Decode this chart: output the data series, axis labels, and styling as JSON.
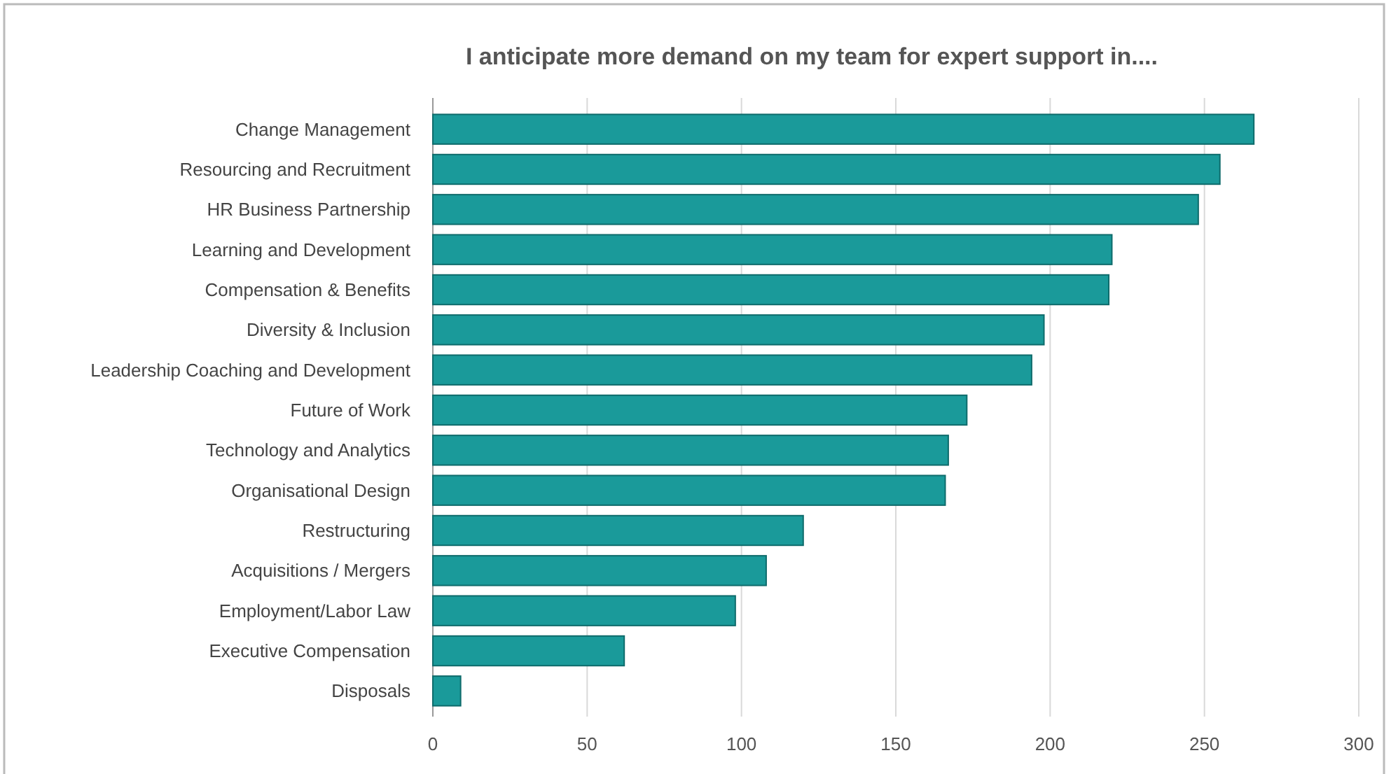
{
  "chart_data": {
    "type": "bar",
    "orientation": "horizontal",
    "title": "I anticipate more demand on my team for expert support in....",
    "categories": [
      "Change Management",
      "Resourcing and Recruitment",
      "HR Business Partnership",
      "Learning and Development",
      "Compensation & Benefits",
      "Diversity & Inclusion",
      "Leadership Coaching and Development",
      "Future of Work",
      "Technology and Analytics",
      "Organisational Design",
      "Restructuring",
      "Acquisitions / Mergers",
      "Employment/Labor Law",
      "Executive Compensation",
      "Disposals"
    ],
    "values": [
      266,
      255,
      248,
      220,
      219,
      198,
      194,
      173,
      167,
      166,
      120,
      108,
      98,
      62,
      9
    ],
    "color": "#1a9a9a",
    "xlim": [
      0,
      300
    ],
    "xticks": [
      0,
      50,
      100,
      150,
      200,
      250,
      300
    ],
    "grid": "x"
  }
}
